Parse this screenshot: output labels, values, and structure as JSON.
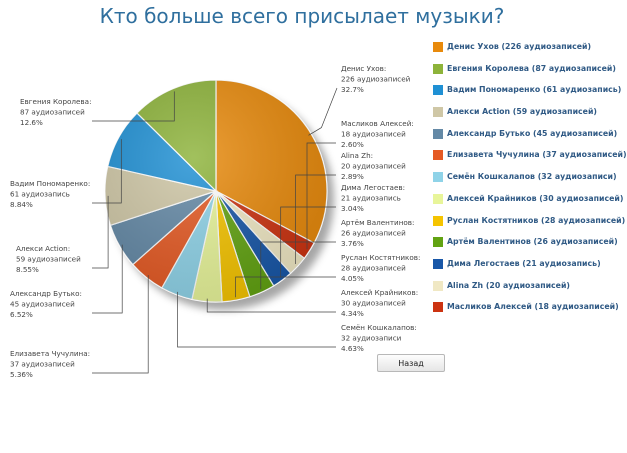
{
  "page_title": "Кто больше всего присылает музыки?",
  "back_label": "Назад",
  "colors": {
    "title": "#2f6f9e",
    "legend_text": "#305a85",
    "callout_text": "#444444",
    "leader_line": "#444444"
  },
  "chart_data": {
    "type": "pie",
    "title": "",
    "legend_position": "right",
    "slices": [
      {
        "name": "Денис Ухов",
        "count": 226,
        "count_label": "226 аудиозаписей",
        "percent_label": "32.7%",
        "legend": "Денис Ухов (226 аудиозаписей)",
        "color": "#e88a0c"
      },
      {
        "name": "Масликов Алексей",
        "count": 18,
        "count_label": "18 аудиозаписей",
        "percent_label": "2.60%",
        "legend": "Масликов Алексей (18 аудиозаписей)",
        "color": "#cc3311"
      },
      {
        "name": "Alina Zh",
        "count": 20,
        "count_label": "20 аудиозаписей",
        "percent_label": "2.89%",
        "legend": "Alina Zh (20 аудиозаписей)",
        "color": "#f0e8c4"
      },
      {
        "name": "Дима Легостаев",
        "count": 21,
        "count_label": "21 аудиозапись",
        "percent_label": "3.04%",
        "legend": "Дима Легостаев (21 аудиозапись)",
        "color": "#1857a8"
      },
      {
        "name": "Артём Валентинов",
        "count": 26,
        "count_label": "26 аудиозаписей",
        "percent_label": "3.76%",
        "legend": "Артём Валентинов (26 аудиозаписей)",
        "color": "#62a312"
      },
      {
        "name": "Руслан Костятников",
        "count": 28,
        "count_label": "28 аудиозаписей",
        "percent_label": "4.05%",
        "legend": "Руслан Костятников (28 аудиозаписей)",
        "color": "#f5c400"
      },
      {
        "name": "Алексей Крайников",
        "count": 30,
        "count_label": "30 аудиозаписей",
        "percent_label": "4.34%",
        "legend": "Алексей Крайников (30 аудиозаписей)",
        "color": "#e8f59a"
      },
      {
        "name": "Семён Кошкалапов",
        "count": 32,
        "count_label": "32 аудиозаписи",
        "percent_label": "4.63%",
        "legend": "Семён Кошкалапов (32 аудиозаписи)",
        "color": "#8fd3e8"
      },
      {
        "name": "Елизавета Чучулина",
        "count": 37,
        "count_label": "37 аудиозаписей",
        "percent_label": "5.36%",
        "legend": "Елизавета Чучулина (37 аудиозаписей)",
        "color": "#e55a24"
      },
      {
        "name": "Александр Бутько",
        "count": 45,
        "count_label": "45 аудиозаписей",
        "percent_label": "6.52%",
        "legend": "Александр Бутько (45 аудиозаписей)",
        "color": "#6489a6"
      },
      {
        "name": "Алекси Action",
        "count": 59,
        "count_label": "59 аудиозаписей",
        "percent_label": "8.55%",
        "legend": "Алекси Action (59 аудиозаписей)",
        "color": "#cfc7a6"
      },
      {
        "name": "Вадим Пономаренко",
        "count": 61,
        "count_label": "61 аудиозапись",
        "percent_label": "8.84%",
        "legend": "Вадим Пономаренко (61 аудиозапись)",
        "color": "#1f90d4"
      },
      {
        "name": "Евгения Королева",
        "count": 87,
        "count_label": "87 аудиозаписей",
        "percent_label": "12.6%",
        "legend": "Евгения Королева (87 аудиозаписей)",
        "color": "#8db33a"
      }
    ],
    "legend_order": [
      0,
      12,
      11,
      10,
      9,
      8,
      7,
      6,
      5,
      4,
      3,
      2,
      1
    ]
  }
}
